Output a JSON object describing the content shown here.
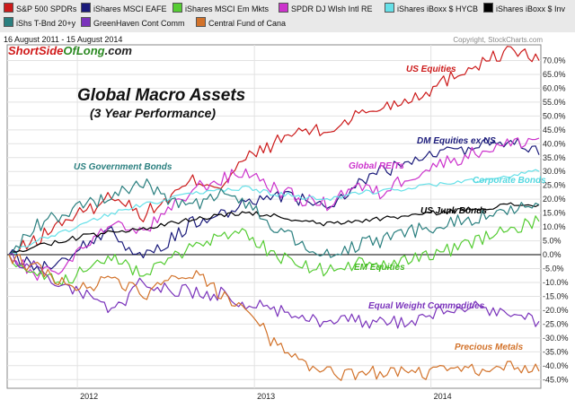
{
  "legend": [
    {
      "label": "S&P 500 SPDRs",
      "color": "#cc1a1a"
    },
    {
      "label": "iShares MSCI EAFE",
      "color": "#1a1a7a"
    },
    {
      "label": "iShares MSCI Em Mkts",
      "color": "#55cc33"
    },
    {
      "label": "SPDR DJ Wlsh Intl RE",
      "color": "#cc33cc"
    },
    {
      "label": "iShares iBoxx $ HYCB",
      "color": "#66e0e8"
    },
    {
      "label": "iShares iBoxx $ Inv",
      "color": "#000000"
    },
    {
      "label": "iShs T-Bnd 20+y",
      "color": "#2a7f7f"
    },
    {
      "label": "GreenHaven Cont Comm",
      "color": "#7a33bb"
    },
    {
      "label": "Central Fund of Cana",
      "color": "#d2722a"
    }
  ],
  "header": {
    "date_range": "16 August 2011 - 15 August 2014",
    "copyright": "Copyright, StockCharts.com",
    "brand_part1": "ShortSide",
    "brand_part2": "OfLong",
    "brand_part3": ".com"
  },
  "chart_data": {
    "type": "line",
    "title": "Global Macro Assets",
    "subtitle": "(3 Year Performance)",
    "xlabel": "",
    "ylabel": "",
    "x_range": [
      "2011-08-16",
      "2014-08-15"
    ],
    "ylim": [
      -47.5,
      75
    ],
    "y_ticks": [
      -45,
      -40,
      -35,
      -30,
      -25,
      -20,
      -15,
      -10,
      -5,
      0,
      5,
      10,
      15,
      20,
      25,
      30,
      35,
      40,
      45,
      50,
      55,
      60,
      65,
      70
    ],
    "y_tick_labels": [
      "-45.0%",
      "-40.0%",
      "-35.0%",
      "-30.0%",
      "-25.0%",
      "-20.0%",
      "-15.0%",
      "-10.0%",
      "-5.0%",
      "0.0%",
      "5.0%",
      "10.0%",
      "15.0%",
      "20.0%",
      "25.0%",
      "30.0%",
      "35.0%",
      "40.0%",
      "45.0%",
      "50.0%",
      "55.0%",
      "60.0%",
      "65.0%",
      "70.0%"
    ],
    "x_ticks": [
      {
        "label": "2012",
        "t": 0.129
      },
      {
        "label": "2013",
        "t": 0.463
      },
      {
        "label": "2014",
        "t": 0.796
      }
    ],
    "grid": true,
    "legend_position": "top",
    "time_points": [
      0,
      0.05,
      0.1,
      0.15,
      0.2,
      0.25,
      0.3,
      0.35,
      0.4,
      0.45,
      0.5,
      0.55,
      0.6,
      0.65,
      0.7,
      0.75,
      0.8,
      0.85,
      0.9,
      0.95,
      1.0
    ],
    "series": [
      {
        "name": "US Equities",
        "color": "#cc1a1a",
        "values": [
          0,
          5,
          12,
          16,
          22,
          14,
          20,
          27,
          25,
          35,
          40,
          45,
          44,
          50,
          53,
          56,
          60,
          66,
          70,
          74,
          70
        ]
      },
      {
        "name": "DM Equities ex US",
        "color": "#1a1a7a",
        "values": [
          0,
          -5,
          -2,
          5,
          8,
          -2,
          5,
          12,
          15,
          18,
          22,
          20,
          16,
          25,
          30,
          32,
          36,
          38,
          40,
          42,
          36
        ]
      },
      {
        "name": "Global REITs",
        "color": "#cc33cc",
        "values": [
          0,
          -8,
          -5,
          5,
          10,
          8,
          15,
          24,
          27,
          30,
          24,
          20,
          18,
          25,
          22,
          28,
          32,
          35,
          38,
          40,
          42
        ]
      },
      {
        "name": "Corporate Bonds",
        "color": "#66e0e8",
        "values": [
          0,
          5,
          8,
          12,
          15,
          18,
          20,
          22,
          23,
          24,
          22,
          21,
          20,
          22,
          23,
          24,
          25,
          26,
          27,
          29,
          30
        ]
      },
      {
        "name": "US Junk Bonds",
        "color": "#000000",
        "values": [
          0,
          3,
          5,
          7,
          8,
          9,
          11,
          13,
          14,
          15,
          14,
          12,
          11,
          12,
          13,
          14,
          15,
          16,
          17,
          18,
          18
        ]
      },
      {
        "name": "EM Equities",
        "color": "#55cc33",
        "values": [
          0,
          -8,
          -10,
          -5,
          0,
          -8,
          -3,
          4,
          6,
          8,
          0,
          -4,
          -6,
          -3,
          -5,
          -2,
          0,
          3,
          6,
          10,
          12
        ]
      },
      {
        "name": "US Government Bonds",
        "color": "#2a7f7f",
        "values": [
          0,
          10,
          15,
          18,
          22,
          26,
          20,
          18,
          22,
          18,
          10,
          5,
          0,
          3,
          5,
          8,
          10,
          12,
          14,
          16,
          18
        ]
      },
      {
        "name": "Equal Weight Commodities",
        "color": "#7a33bb",
        "values": [
          0,
          -5,
          -12,
          -15,
          -20,
          -10,
          -12,
          -14,
          -14,
          -18,
          -20,
          -22,
          -24,
          -23,
          -25,
          -24,
          -22,
          -18,
          -20,
          -22,
          -24
        ]
      },
      {
        "name": "Precious Metals",
        "color": "#d2722a",
        "values": [
          0,
          -5,
          -10,
          -12,
          -8,
          -15,
          -10,
          -6,
          -15,
          -20,
          -32,
          -38,
          -42,
          -44,
          -42,
          -43,
          -43,
          -41,
          -42,
          -40,
          -42
        ]
      }
    ],
    "annotations": [
      {
        "text": "US Equities",
        "color": "#cc1a1a"
      },
      {
        "text": "DM Equities ex US",
        "color": "#1a1a7a"
      },
      {
        "text": "Global REITs",
        "color": "#cc33cc"
      },
      {
        "text": "Corporate Bonds",
        "color": "#55d8e0"
      },
      {
        "text": "US Junk Bonds",
        "color": "#000000"
      },
      {
        "text": "US Government Bonds",
        "color": "#2a7f7f"
      },
      {
        "text": "EM Equities",
        "color": "#44bb22"
      },
      {
        "text": "Equal Weight Commodities",
        "color": "#7a33bb"
      },
      {
        "text": "Precious Metals",
        "color": "#d2722a"
      }
    ]
  }
}
